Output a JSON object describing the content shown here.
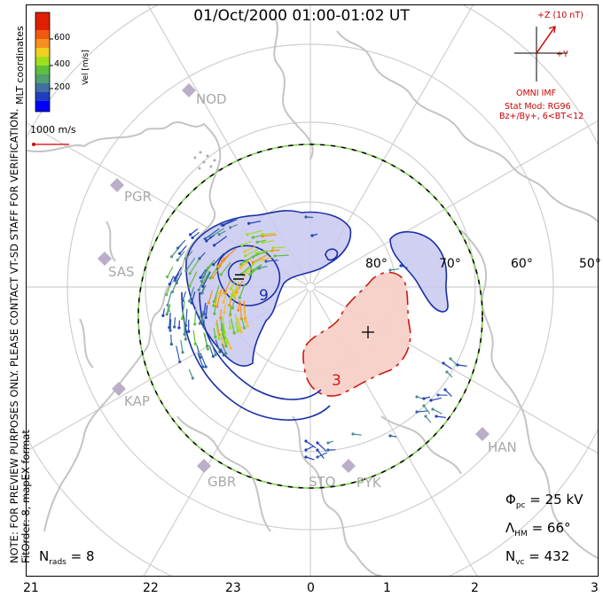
{
  "title": "01/Oct/2000 01:00-01:02 UT",
  "side_note": {
    "line1": "NOTE: FOR PREVIEW PURPOSES ONLY. PLEASE CONTACT VT-SD STAFF FOR VERIFICATION.",
    "line2": "FitOrder: 8, mapEX format"
  },
  "coordinates_label": "MLT coordinates",
  "colorbar": {
    "title": "Vel [m/s]",
    "ticks": [
      "600",
      "400",
      "200"
    ],
    "colors": [
      "#0000ff",
      "#2f5fa8",
      "#4f8f8f",
      "#5fbf3f",
      "#9fdf1f",
      "#f0d020",
      "#f59020",
      "#f05a10",
      "#dd2000"
    ]
  },
  "reference_vector": {
    "label": "1000 m/s"
  },
  "imf": {
    "z_label": "+Z (10 nT)",
    "y_label": "+Y",
    "source_label": "OMNI IMF",
    "stat_mod_line1": "Stat Mod: RG96",
    "stat_mod_line2": "Bz+/By+, 6<BT<12"
  },
  "contours": {
    "negative_marker": "−",
    "negative_value": "9",
    "positive_marker": "+",
    "positive_value": "3",
    "negative_fill": "#c8c8f0",
    "positive_fill": "#f5d0c8",
    "negative_line": "#1a2fa8",
    "positive_line": "#cc1a10"
  },
  "stations": [
    "NOD",
    "PGR",
    "SAS",
    "KAP",
    "GBR",
    "STO",
    "PYK",
    "HAN"
  ],
  "latitude_labels": [
    "80°",
    "70°",
    "60°",
    "50°"
  ],
  "mlt_labels": [
    "21",
    "22",
    "23",
    "0",
    "1",
    "2",
    "3"
  ],
  "stats": {
    "phi_symbol": "Φ",
    "phi_sub": "pc",
    "phi_value": "= 25 kV",
    "lambda_symbol": "Λ",
    "lambda_sub": "HM",
    "lambda_value": "= 66°",
    "nvc_symbol": "N",
    "nvc_sub": "vc",
    "nvc_value": "= 432"
  },
  "nrads": {
    "symbol": "N",
    "sub": "rads",
    "value": "= 8"
  }
}
